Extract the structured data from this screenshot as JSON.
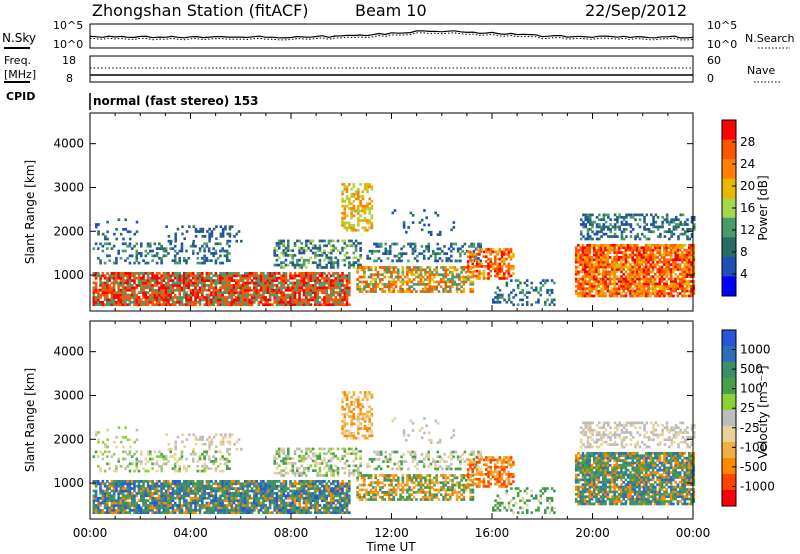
{
  "header": {
    "station": "Zhongshan Station (fitACF)",
    "beam": "Beam 10",
    "date": "22/Sep/2012"
  },
  "noise_panel": {
    "left_label": "N.Sky",
    "right_label": "N.Search",
    "left_ticks": [
      "10^5",
      "10^0"
    ],
    "right_ticks": [
      "10^5",
      "10^0"
    ]
  },
  "freq_panel": {
    "left_label_1": "Freq.",
    "left_label_2": "[MHz]",
    "right_label": "Nave",
    "left_ticks": [
      "18",
      "8"
    ],
    "right_ticks": [
      "60",
      "0"
    ]
  },
  "cpid_panel": {
    "label": "CPID",
    "text": "normal (fast stereo) 153"
  },
  "colors": {
    "power": [
      "#0000ff",
      "#1f4fb3",
      "#2a6b66",
      "#4a9b6a",
      "#a6d64a",
      "#e6b800",
      "#ff8000",
      "#ff5500",
      "#ff0000"
    ],
    "velocity": [
      "#2a55d8",
      "#2e6fb8",
      "#3f8f66",
      "#4aa04a",
      "#8ccf3a",
      "#bdbdbd",
      "#e8d29a",
      "#f0b040",
      "#ff8800",
      "#ff4400",
      "#ff0000"
    ]
  },
  "chart_data": [
    {
      "type": "heatmap",
      "name": "power",
      "ylabel": "Slant Range [km]",
      "xlabel": "",
      "x_ticks": [
        "00:00",
        "04:00",
        "08:00",
        "12:00",
        "16:00",
        "20:00",
        "00:00"
      ],
      "x_range_hours": [
        0,
        24
      ],
      "y_ticks": [
        1000,
        2000,
        3000,
        4000
      ],
      "ylim": [
        180,
        4700
      ],
      "colorbar": {
        "label": "Power [dB]",
        "ticks": [
          "4",
          "8",
          "12",
          "16",
          "20",
          "24",
          "28"
        ],
        "range": [
          0,
          30
        ]
      }
    },
    {
      "type": "heatmap",
      "name": "velocity",
      "ylabel": "Slant Range [km]",
      "xlabel": "Time UT",
      "x_ticks": [
        "00:00",
        "04:00",
        "08:00",
        "12:00",
        "16:00",
        "20:00",
        "00:00"
      ],
      "x_range_hours": [
        0,
        24
      ],
      "y_ticks": [
        1000,
        2000,
        3000,
        4000
      ],
      "ylim": [
        180,
        4700
      ],
      "colorbar": {
        "label": "Velocity [m s⁻¹]",
        "ticks": [
          "1000",
          "500",
          "100",
          "25",
          "-25",
          "-100",
          "-500",
          "-1000"
        ],
        "range": [
          -1000,
          1000
        ]
      }
    }
  ]
}
